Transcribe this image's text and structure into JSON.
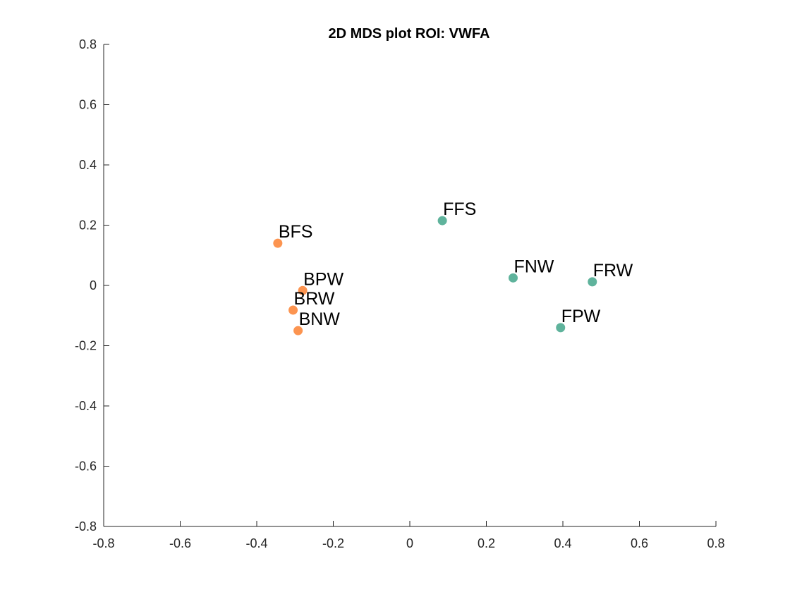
{
  "chart_data": {
    "type": "scatter",
    "title": "2D MDS plot ROI: VWFA",
    "xlabel": "",
    "ylabel": "",
    "xlim": [
      -0.8,
      0.8
    ],
    "ylim": [
      -0.8,
      0.8
    ],
    "xticks": [
      -0.8,
      -0.6,
      -0.4,
      -0.2,
      0,
      0.2,
      0.4,
      0.6,
      0.8
    ],
    "yticks": [
      -0.8,
      -0.6,
      -0.4,
      -0.2,
      0,
      0.2,
      0.4,
      0.6,
      0.8
    ],
    "xtick_labels": [
      "-0.8",
      "-0.6",
      "-0.4",
      "-0.2",
      "0",
      "0.2",
      "0.4",
      "0.6",
      "0.8"
    ],
    "ytick_labels": [
      "-0.8",
      "-0.6",
      "-0.4",
      "-0.2",
      "0",
      "0.2",
      "0.4",
      "0.6",
      "0.8"
    ],
    "grid": false,
    "colors": {
      "B": "#fc9450",
      "F": "#5fb39c"
    },
    "points": [
      {
        "label": "BFS",
        "x": -0.345,
        "y": 0.14,
        "group": "B"
      },
      {
        "label": "BPW",
        "x": -0.28,
        "y": -0.017,
        "group": "B"
      },
      {
        "label": "BRW",
        "x": -0.305,
        "y": -0.082,
        "group": "B"
      },
      {
        "label": "BNW",
        "x": -0.292,
        "y": -0.15,
        "group": "B"
      },
      {
        "label": "FFS",
        "x": 0.085,
        "y": 0.215,
        "group": "F"
      },
      {
        "label": "FNW",
        "x": 0.27,
        "y": 0.025,
        "group": "F"
      },
      {
        "label": "FRW",
        "x": 0.477,
        "y": 0.012,
        "group": "F"
      },
      {
        "label": "FPW",
        "x": 0.394,
        "y": -0.14,
        "group": "F"
      }
    ]
  }
}
